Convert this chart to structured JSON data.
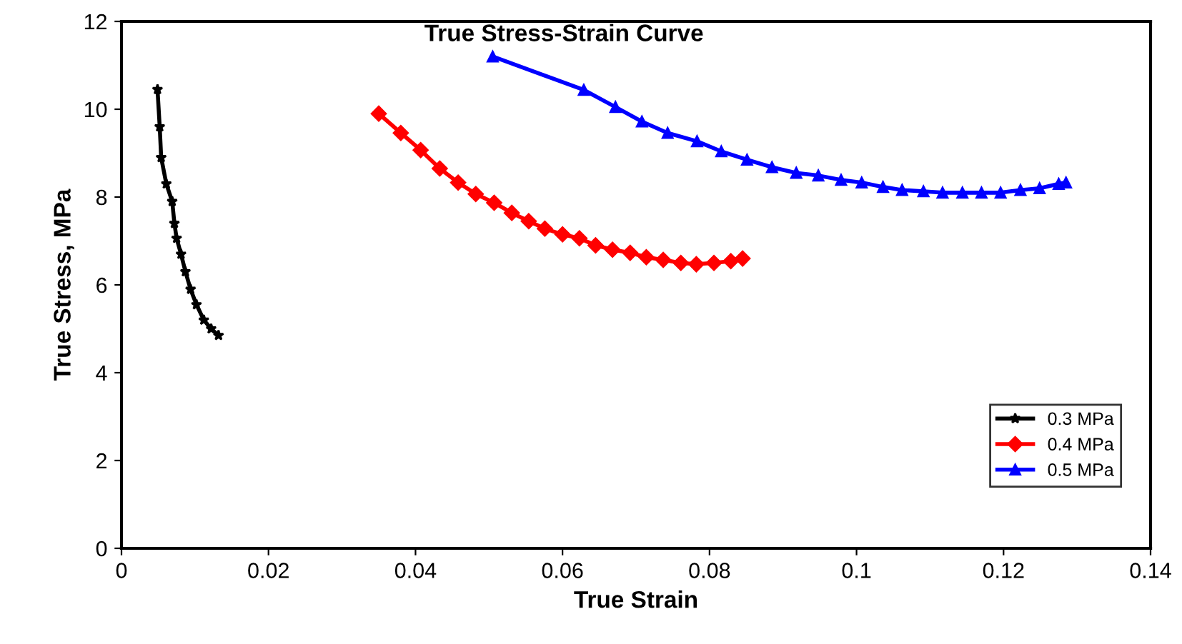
{
  "chart_data": {
    "type": "line",
    "title": "True Stress-Strain Curve",
    "xlabel": "True Strain",
    "ylabel": "True Stress, MPa",
    "xlim": [
      0,
      0.14
    ],
    "xticks": [
      0,
      0.02,
      0.04,
      0.06,
      0.08,
      0.1,
      0.12,
      0.14
    ],
    "ylim": [
      0,
      12
    ],
    "yticks": [
      0,
      2,
      4,
      6,
      8,
      10,
      12
    ],
    "grid": false,
    "legend": "bottom right",
    "series": [
      {
        "name": "0.3 MPa",
        "color": "#000000",
        "marker": "star",
        "x": [
          0.0049,
          0.0052,
          0.0054,
          0.0061,
          0.0069,
          0.0072,
          0.0075,
          0.0081,
          0.0087,
          0.0094,
          0.0102,
          0.0112,
          0.0122,
          0.0132
        ],
        "values": [
          10.45,
          9.6,
          8.9,
          8.3,
          7.9,
          7.4,
          7.06,
          6.7,
          6.3,
          5.9,
          5.55,
          5.2,
          5.0,
          4.85
        ]
      },
      {
        "name": "0.4 MPa",
        "color": "#ff0000",
        "marker": "diamond",
        "x": [
          0.035,
          0.038,
          0.0407,
          0.0433,
          0.0458,
          0.0482,
          0.0507,
          0.0531,
          0.0554,
          0.0576,
          0.06,
          0.0623,
          0.0645,
          0.0668,
          0.0692,
          0.0714,
          0.0737,
          0.0761,
          0.0782,
          0.0806,
          0.0829,
          0.0845
        ],
        "values": [
          9.9,
          9.46,
          9.07,
          8.65,
          8.33,
          8.07,
          7.87,
          7.64,
          7.45,
          7.28,
          7.15,
          7.06,
          6.9,
          6.8,
          6.73,
          6.63,
          6.57,
          6.5,
          6.47,
          6.5,
          6.54,
          6.6
        ]
      },
      {
        "name": "0.5 MPa",
        "color": "#0000ff",
        "marker": "triangle",
        "x": [
          0.0505,
          0.0629,
          0.0672,
          0.0708,
          0.0743,
          0.0783,
          0.0816,
          0.0851,
          0.0885,
          0.0918,
          0.0948,
          0.0979,
          0.1007,
          0.1036,
          0.1062,
          0.1091,
          0.1117,
          0.1144,
          0.117,
          0.1196,
          0.1223,
          0.1249,
          0.1275,
          0.1285
        ],
        "values": [
          11.2,
          10.44,
          10.05,
          9.72,
          9.46,
          9.27,
          9.04,
          8.85,
          8.68,
          8.55,
          8.49,
          8.39,
          8.33,
          8.23,
          8.16,
          8.13,
          8.1,
          8.1,
          8.1,
          8.1,
          8.16,
          8.2,
          8.3,
          8.33
        ]
      }
    ]
  }
}
